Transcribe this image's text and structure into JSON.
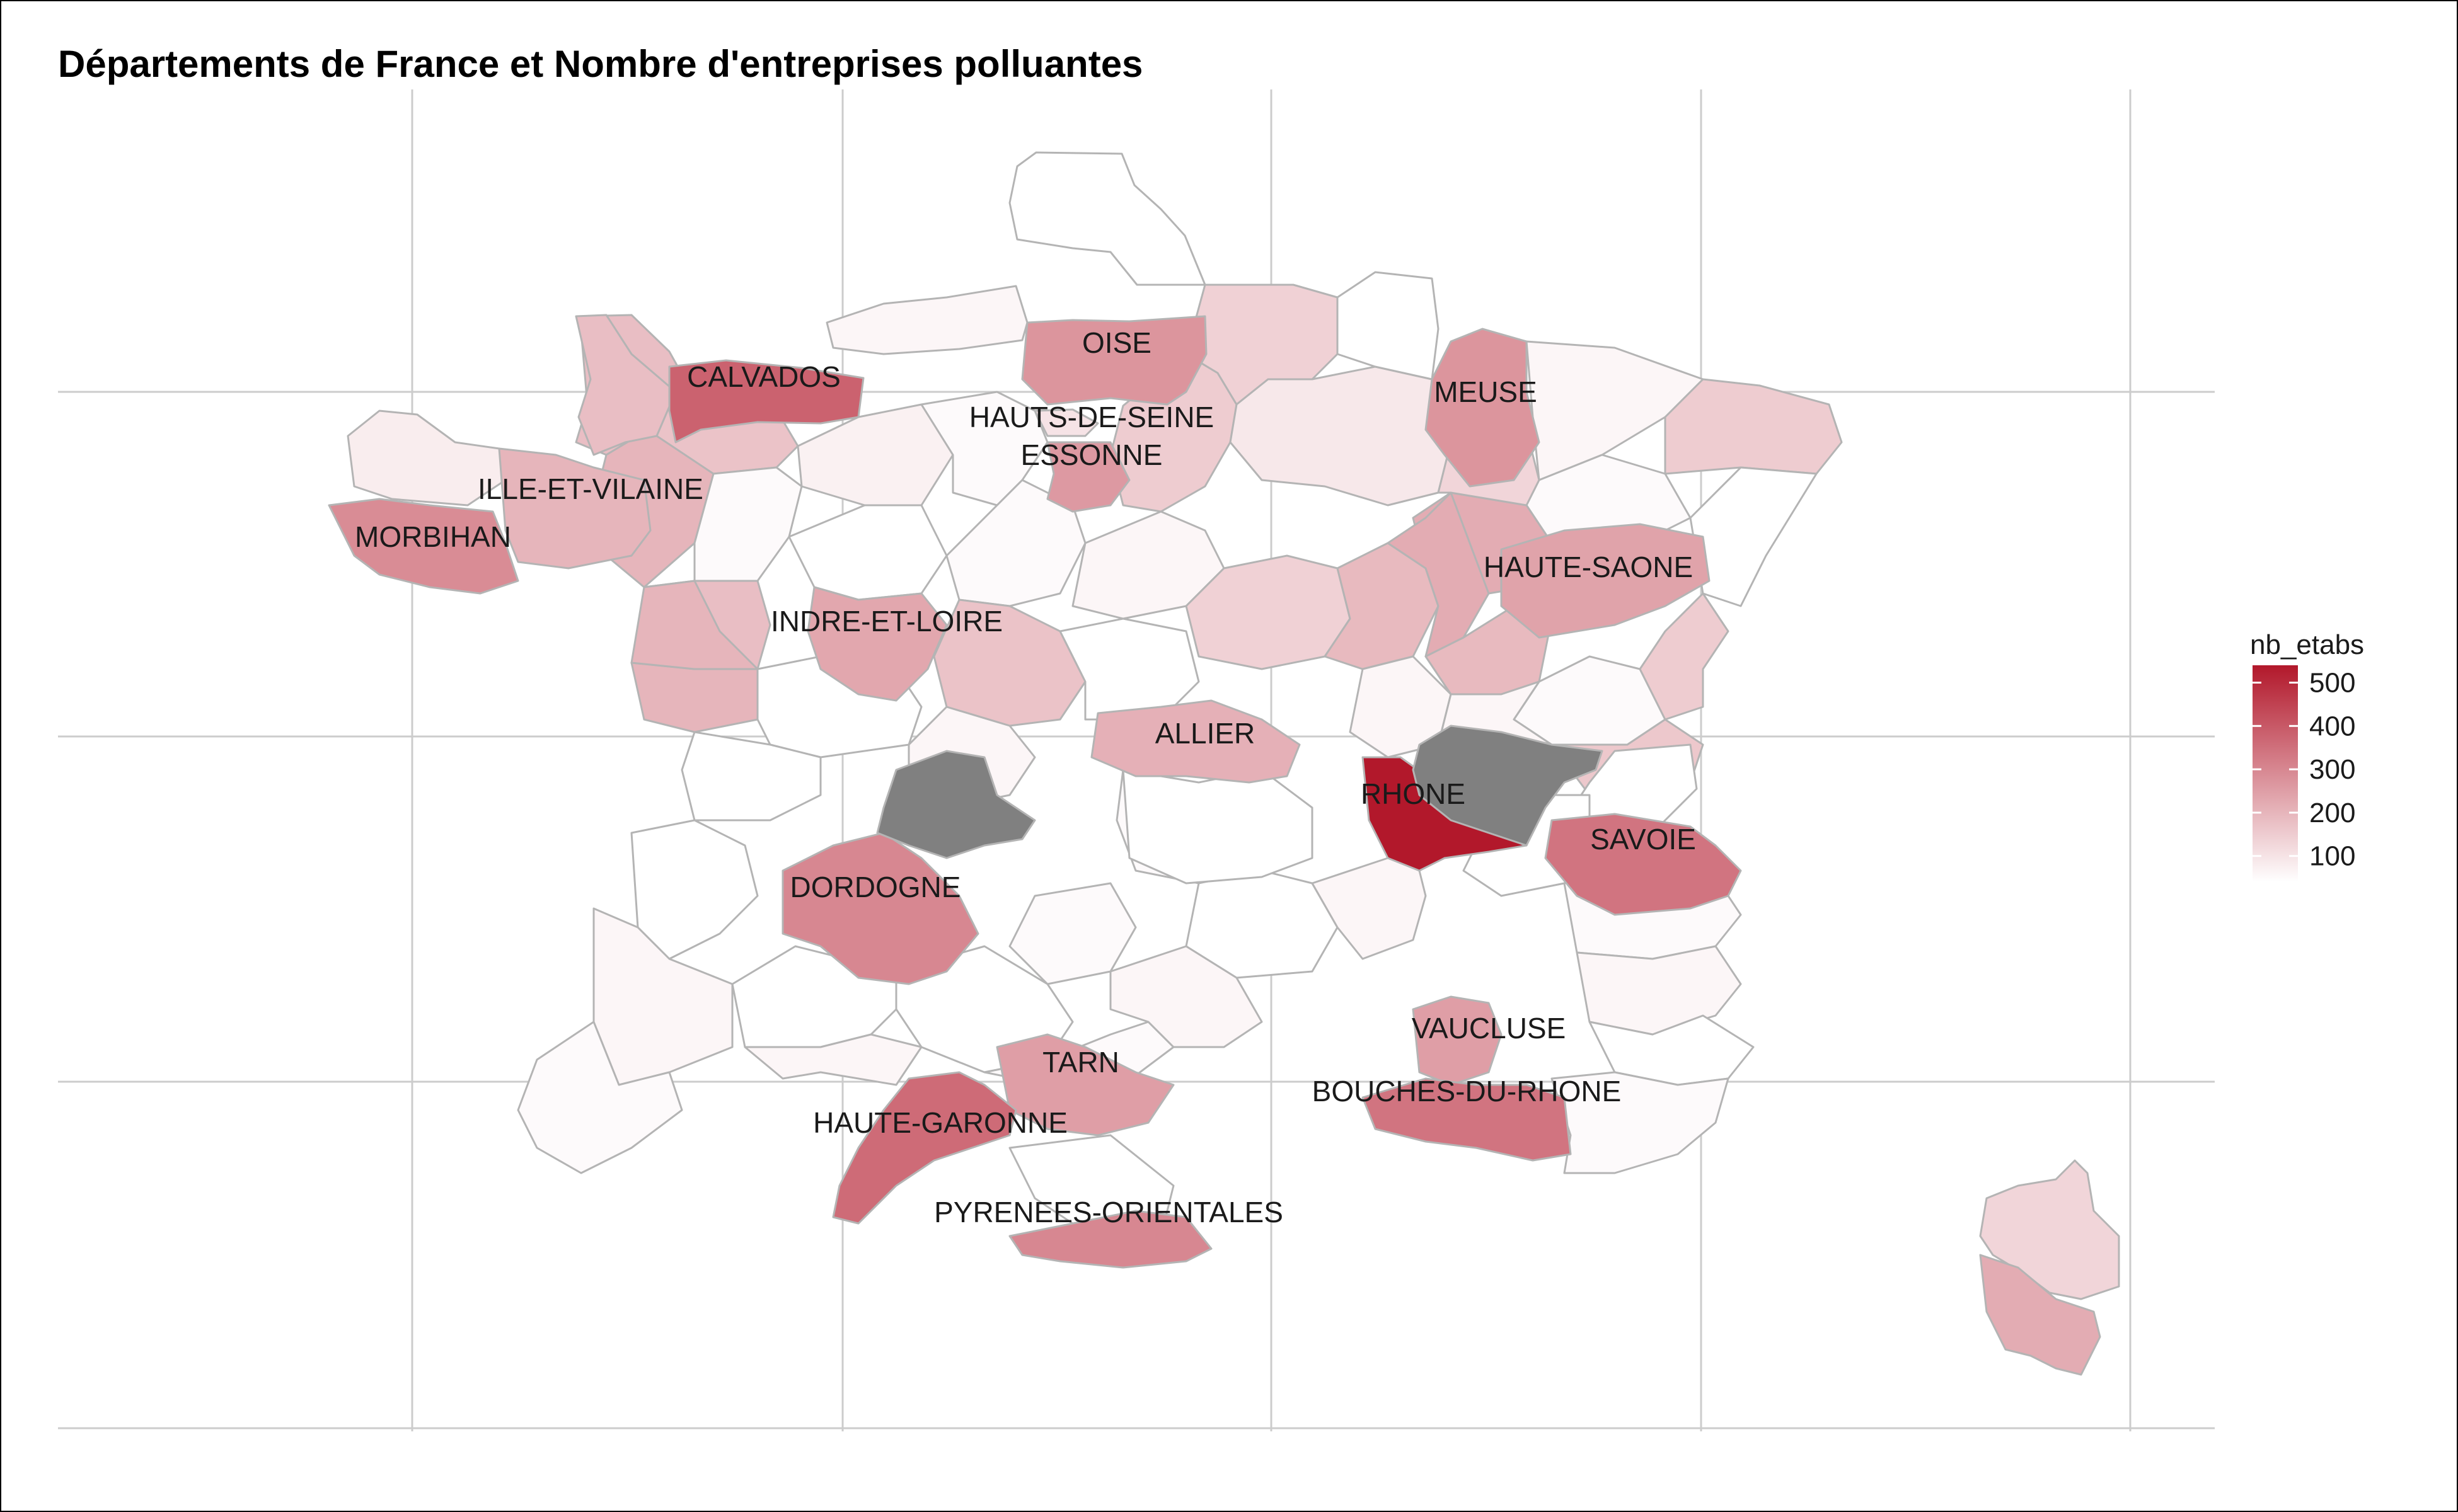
{
  "title": "Départements de France et Nombre d'entreprises polluantes",
  "legend": {
    "title": "nb_etabs",
    "ticks": [
      "500",
      "400",
      "300",
      "200",
      "100"
    ],
    "tick_values": [
      500,
      400,
      300,
      200,
      100
    ],
    "range": [
      40,
      540
    ],
    "low_color": "#ffffff",
    "high_color": "#b2182b",
    "na_color": "#808080"
  },
  "chart_data": {
    "type": "choropleth",
    "variable": "nb_etabs",
    "labeled_departments": [
      {
        "name": "CALVADOS",
        "value": 380
      },
      {
        "name": "OISE",
        "value": 270
      },
      {
        "name": "HAUTS-DE-SEINE",
        "value": 100
      },
      {
        "name": "ESSONNE",
        "value": 260
      },
      {
        "name": "MEUSE",
        "value": 270
      },
      {
        "name": "ILLE-ET-VILAINE",
        "value": 200
      },
      {
        "name": "MORBIHAN",
        "value": 290
      },
      {
        "name": "HAUTE-SAONE",
        "value": 240
      },
      {
        "name": "INDRE-ET-LOIRE",
        "value": 230
      },
      {
        "name": "ALLIER",
        "value": 210
      },
      {
        "name": "RHONE",
        "value": 540
      },
      {
        "name": "SAVOIE",
        "value": 340
      },
      {
        "name": "DORDOGNE",
        "value": 300
      },
      {
        "name": "VAUCLUSE",
        "value": 250
      },
      {
        "name": "TARN",
        "value": 250
      },
      {
        "name": "BOUCHES-DU-RHONE",
        "value": 340
      },
      {
        "name": "HAUTE-GARONNE",
        "value": 360
      },
      {
        "name": "PYRENEES-ORIENTALES",
        "value": 300
      }
    ],
    "unlabeled_departments": [
      {
        "value": 40
      },
      {
        "value": 60
      },
      {
        "value": 180
      },
      {
        "value": 170
      },
      {
        "value": 70
      },
      {
        "value": 50
      },
      {
        "value": 150
      },
      {
        "value": 140
      },
      {
        "value": 90
      },
      {
        "value": 40
      },
      {
        "value": 60
      },
      {
        "value": 150
      },
      {
        "value": 50
      },
      {
        "value": 40
      },
      {
        "value": 220
      },
      {
        "value": 130
      },
      {
        "value": 200
      },
      {
        "value": 80
      },
      {
        "value": 50
      },
      {
        "value": 180
      },
      {
        "value": 40
      },
      {
        "value": 50
      },
      {
        "value": 60
      },
      {
        "value": 170
      },
      {
        "value": 40
      },
      {
        "value": 140
      },
      {
        "value": 190
      },
      {
        "value": 220
      },
      {
        "value": 60
      },
      {
        "value": 190
      },
      {
        "value": 50
      },
      {
        "value": 150
      },
      {
        "value": 60
      },
      {
        "value": 160
      },
      {
        "value": 40
      },
      {
        "value": 200
      },
      {
        "value": 40
      },
      {
        "value": 60
      },
      {
        "value": 40
      },
      {
        "value": 50
      },
      {
        "value": 40
      },
      {
        "value": 60
      },
      {
        "value": 50
      },
      {
        "value": 40
      },
      {
        "value": 50
      },
      {
        "value": 60
      },
      {
        "value": 40
      },
      {
        "value": 50
      },
      {
        "value": 60
      },
      {
        "value": 40
      },
      {
        "value": 50
      },
      {
        "value": 40
      },
      {
        "value": 60
      },
      {
        "value": 50
      },
      {
        "value": 40
      },
      {
        "value": 60
      },
      {
        "value": 40
      }
    ],
    "missing_departments": 2,
    "grid": true
  }
}
